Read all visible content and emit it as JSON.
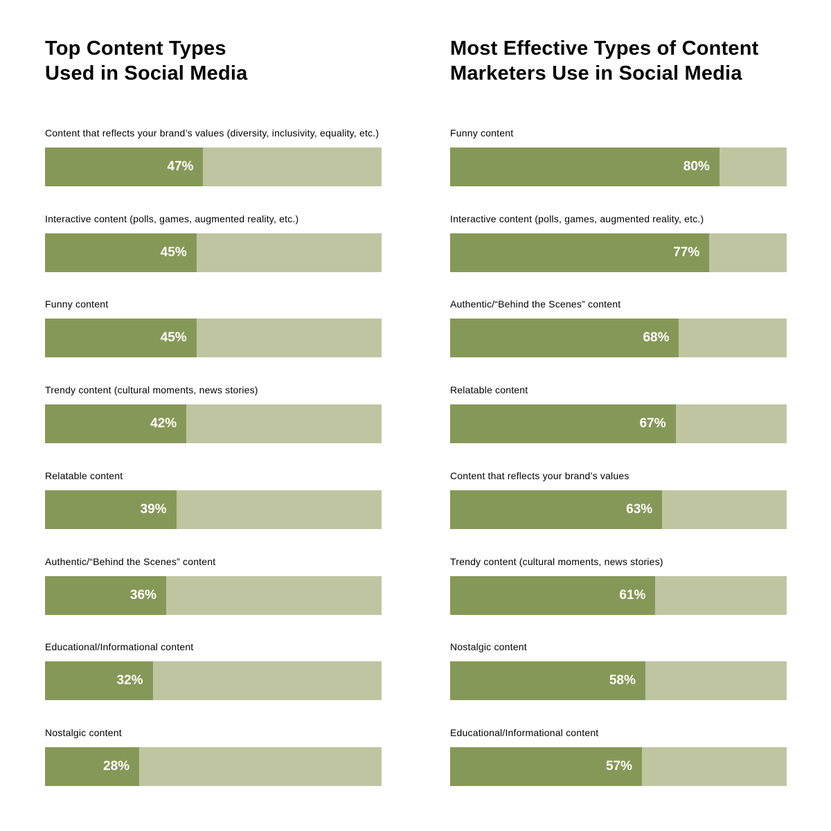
{
  "colors": {
    "fill": "#869857",
    "track": "#bfc5a1",
    "value_text": "#ffffff"
  },
  "chart_data": [
    {
      "type": "bar",
      "orientation": "horizontal",
      "title": "Top Content Types\nUsed in Social Media",
      "xlim": [
        0,
        100
      ],
      "categories": [
        "Content that reflects your brand’s values (diversity, inclusivity, equality, etc.)",
        "Interactive content (polls, games, augmented reality, etc.)",
        "Funny content",
        "Trendy content (cultural moments, news stories)",
        "Relatable content",
        "Authentic/“Behind the Scenes” content",
        "Educational/Informational content",
        "Nostalgic content"
      ],
      "values": [
        47,
        45,
        45,
        42,
        39,
        36,
        32,
        28
      ],
      "value_labels": [
        "47%",
        "45%",
        "45%",
        "42%",
        "39%",
        "36%",
        "32%",
        "28%"
      ]
    },
    {
      "type": "bar",
      "orientation": "horizontal",
      "title": "Most Effective Types of Content\nMarketers Use in Social Media",
      "xlim": [
        0,
        100
      ],
      "categories": [
        "Funny content",
        "Interactive content (polls, games, augmented reality, etc.)",
        "Authentic/“Behind the Scenes” content",
        "Relatable content",
        "Content that reflects your brand’s values",
        "Trendy content (cultural moments, news stories)",
        "Nostalgic content",
        "Educational/Informational content"
      ],
      "values": [
        80,
        77,
        68,
        67,
        63,
        61,
        58,
        57
      ],
      "value_labels": [
        "80%",
        "77%",
        "68%",
        "67%",
        "63%",
        "61%",
        "58%",
        "57%"
      ]
    }
  ]
}
